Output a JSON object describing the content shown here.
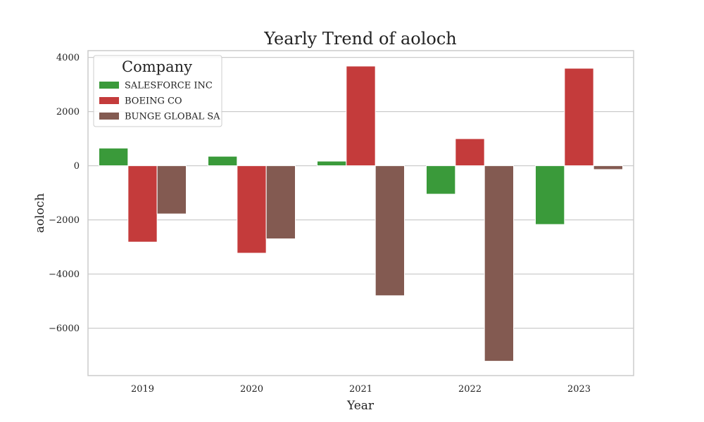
{
  "chart_data": {
    "type": "bar",
    "title": "Yearly Trend of aoloch",
    "xlabel": "Year",
    "ylabel": "aoloch",
    "categories": [
      "2019",
      "2020",
      "2021",
      "2022",
      "2023"
    ],
    "series": [
      {
        "name": "SALESFORCE INC",
        "color": "#3a9a3a",
        "values": [
          650,
          350,
          170,
          -1050,
          -2170
        ]
      },
      {
        "name": "BOEING CO",
        "color": "#c43b3b",
        "values": [
          -2820,
          -3230,
          3680,
          1000,
          3600
        ]
      },
      {
        "name": "BUNGE GLOBAL SA",
        "color": "#835a51",
        "values": [
          -1780,
          -2700,
          -4800,
          -7220,
          -140
        ]
      }
    ],
    "ylim": [
      -7750,
      4250
    ],
    "yticks": [
      4000,
      2000,
      0,
      -2000,
      -4000,
      -6000
    ],
    "ytick_labels": [
      "4000",
      "2000",
      "0",
      "−2000",
      "−4000",
      "−6000"
    ],
    "legend": {
      "title": "Company",
      "position": "top-left"
    },
    "grid": "horizontal"
  }
}
